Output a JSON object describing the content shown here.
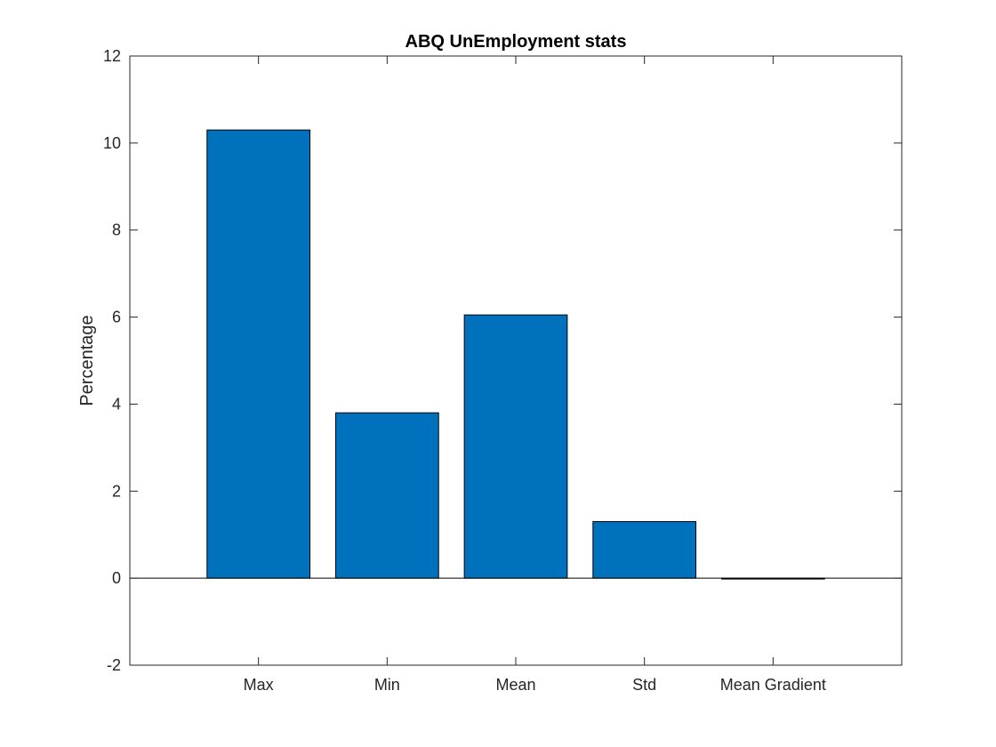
{
  "chart_data": {
    "type": "bar",
    "title": "ABQ UnEmployment stats",
    "xlabel": "",
    "ylabel": "Percentage",
    "categories": [
      "Max",
      "Min",
      "Mean",
      "Std",
      "Mean Gradient"
    ],
    "values": [
      10.3,
      3.8,
      6.05,
      1.3,
      -0.02
    ],
    "ylim": [
      -2,
      12
    ],
    "yticks": [
      "-2",
      "0",
      "2",
      "4",
      "6",
      "8",
      "10",
      "12"
    ],
    "grid": false,
    "bar_color": "#0072BD",
    "bar_edge_color": "#000000",
    "axis_color": "#262626"
  }
}
